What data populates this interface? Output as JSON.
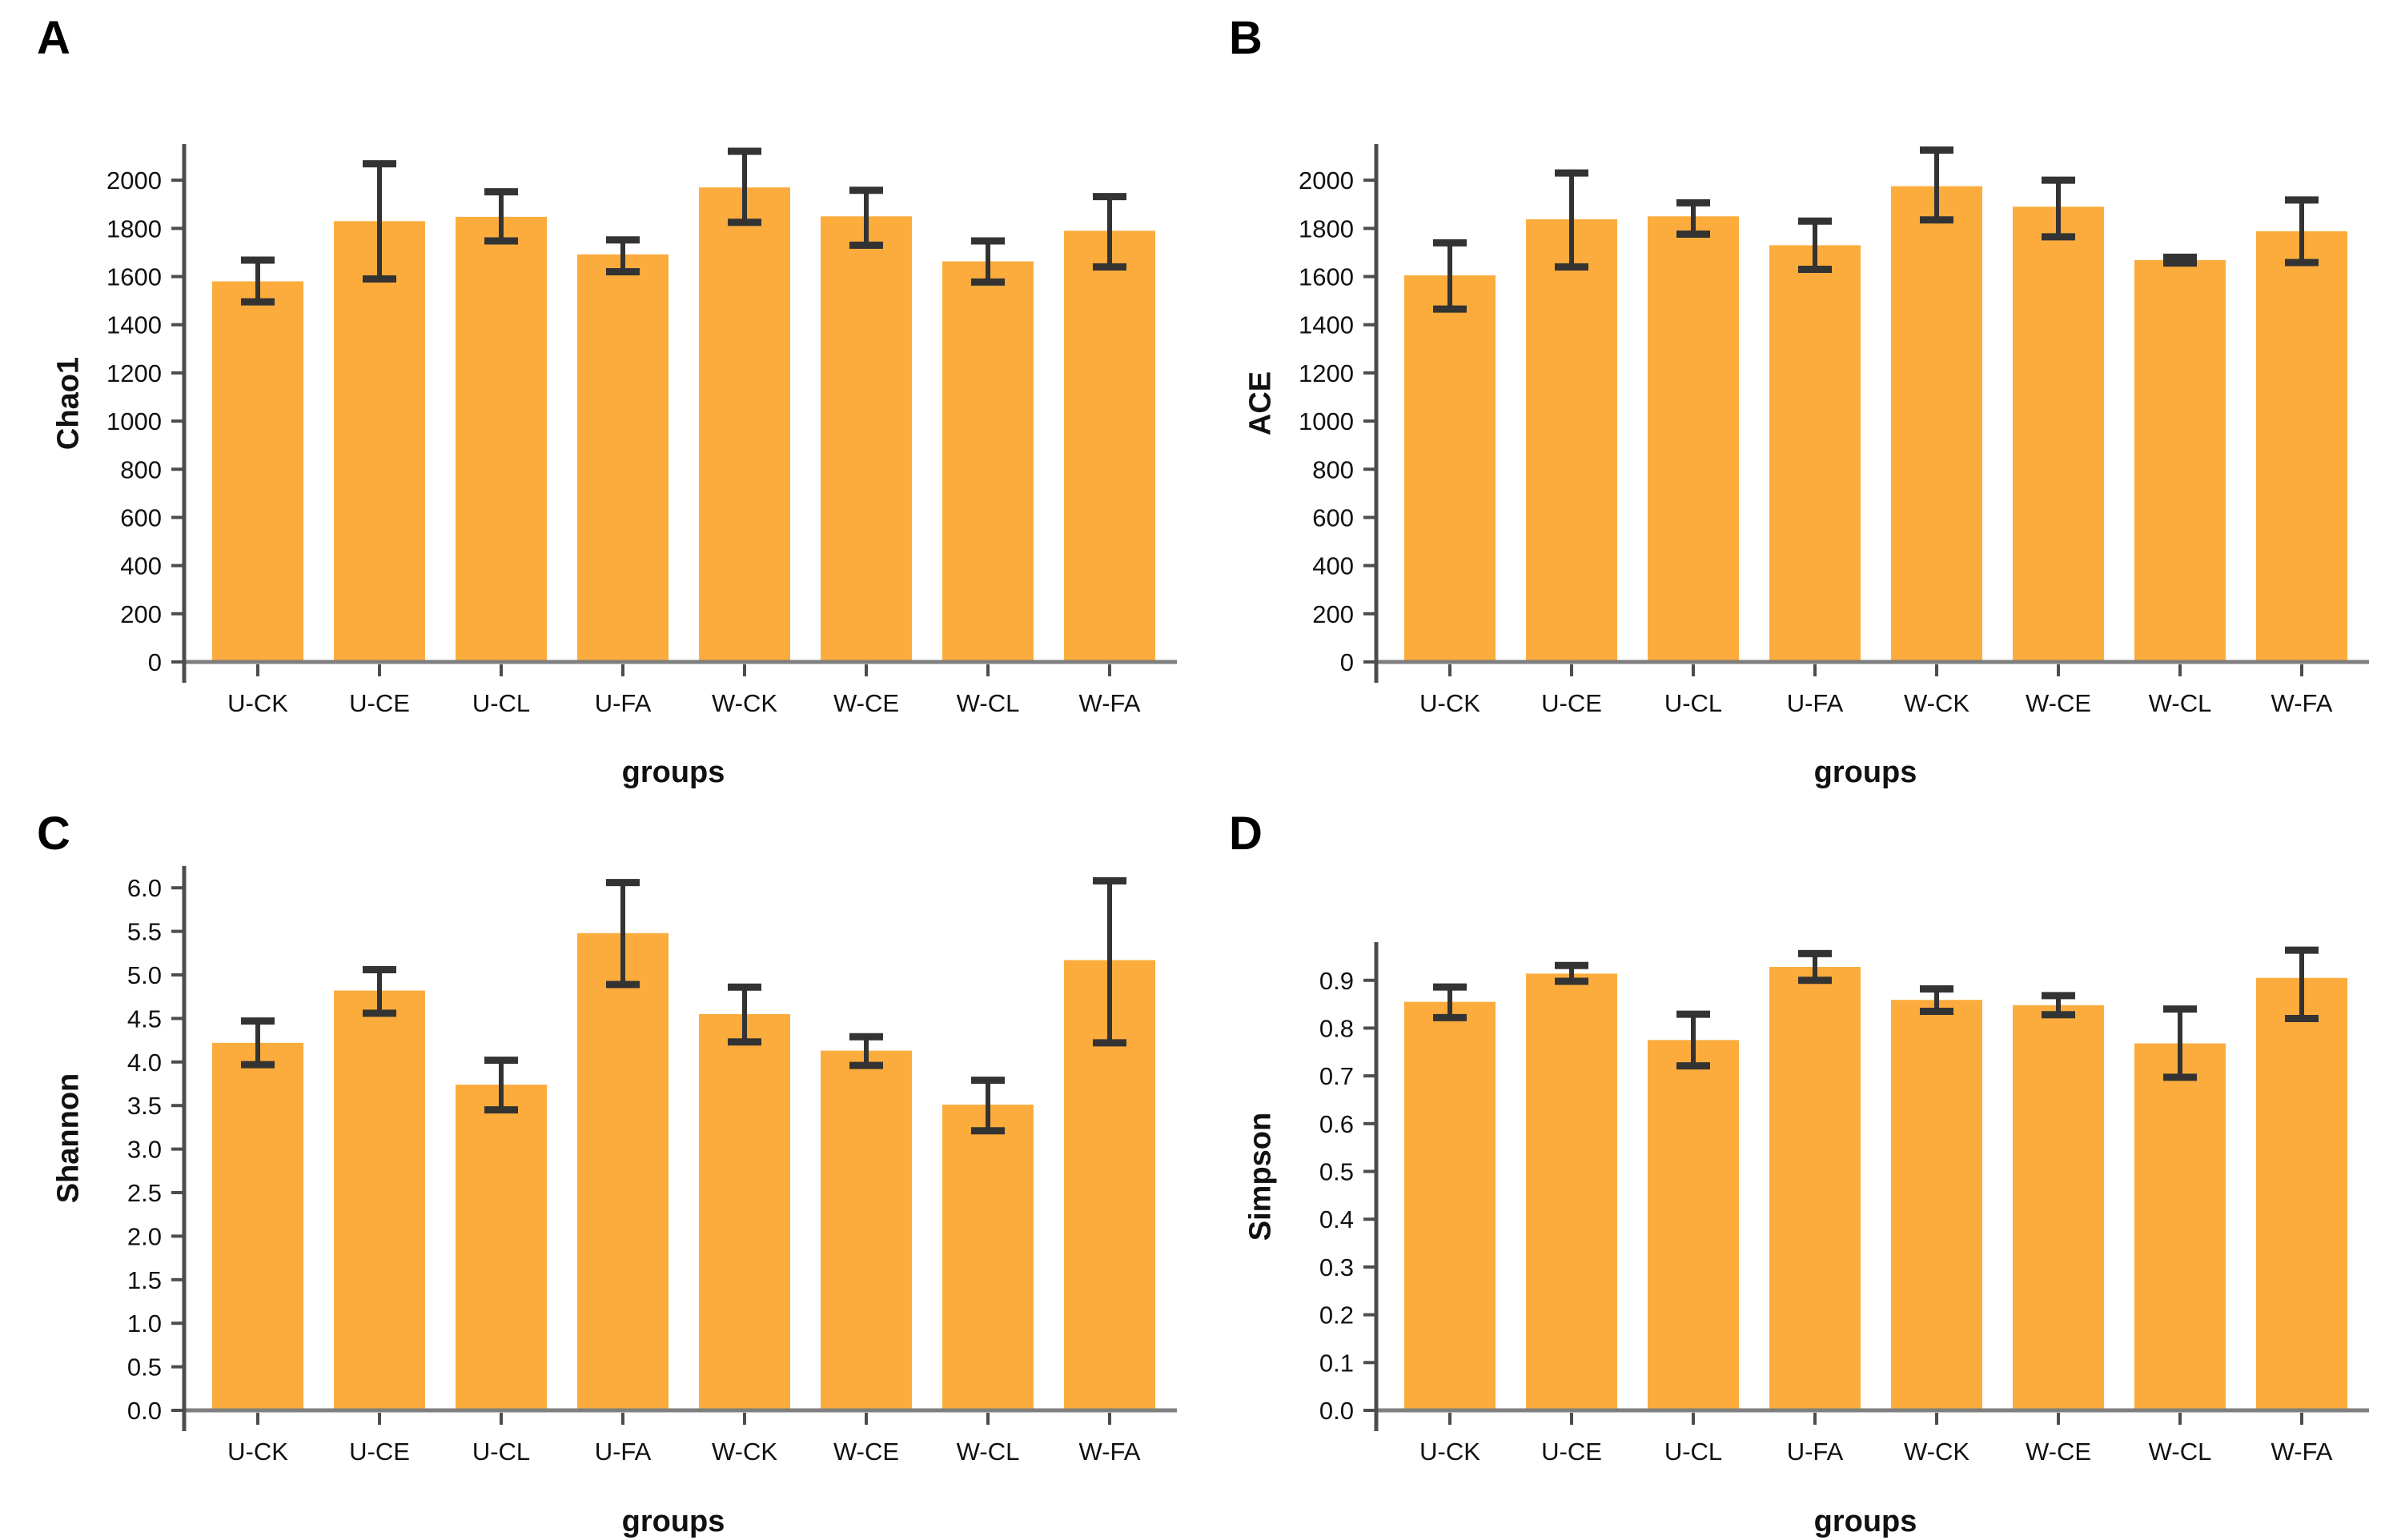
{
  "page": {
    "background": "#ffffff"
  },
  "chart_data": [
    {
      "type": "bar",
      "letter": "A",
      "ylabel": "Chao1",
      "xlabel": "groups",
      "categories": [
        "U-CK",
        "U-CE",
        "U-CL",
        "U-FA",
        "W-CK",
        "W-CE",
        "W-CL",
        "W-FA"
      ],
      "values": [
        1580,
        1830,
        1848,
        1692,
        1970,
        1850,
        1663,
        1790
      ],
      "error_low": [
        1495,
        1590,
        1748,
        1620,
        1825,
        1730,
        1577,
        1640
      ],
      "error_high": [
        1668,
        2068,
        1952,
        1752,
        2120,
        1958,
        1748,
        1932
      ],
      "ylim": [
        0,
        2150
      ],
      "yticks": [
        0,
        200,
        400,
        600,
        800,
        1000,
        1200,
        1400,
        1600,
        1800,
        2000
      ],
      "ytick_labels": [
        "0",
        "200",
        "400",
        "600",
        "800",
        "1000",
        "1200",
        "1400",
        "1600",
        "1800",
        "2000"
      ],
      "grid": "off",
      "legend": "none",
      "bar_color": "#FBAC3D",
      "error_color": "#333333",
      "axis_color": "#4D4D4D",
      "baseline_color": "#7F7F7F"
    },
    {
      "type": "bar",
      "letter": "B",
      "ylabel": "ACE",
      "xlabel": "groups",
      "categories": [
        "U-CK",
        "U-CE",
        "U-CL",
        "U-FA",
        "W-CK",
        "W-CE",
        "W-CL",
        "W-FA"
      ],
      "values": [
        1605,
        1838,
        1850,
        1730,
        1975,
        1890,
        1668,
        1788
      ],
      "error_low": [
        1465,
        1640,
        1776,
        1630,
        1835,
        1765,
        1656,
        1658
      ],
      "error_high": [
        1740,
        2030,
        1906,
        1830,
        2125,
        2000,
        1680,
        1918
      ],
      "ylim": [
        0,
        2150
      ],
      "yticks": [
        0,
        200,
        400,
        600,
        800,
        1000,
        1200,
        1400,
        1600,
        1800,
        2000
      ],
      "ytick_labels": [
        "0",
        "200",
        "400",
        "600",
        "800",
        "1000",
        "1200",
        "1400",
        "1600",
        "1800",
        "2000"
      ],
      "grid": "off",
      "legend": "none",
      "bar_color": "#FBAC3D",
      "error_color": "#333333",
      "axis_color": "#4D4D4D",
      "baseline_color": "#7F7F7F"
    },
    {
      "type": "bar",
      "letter": "C",
      "ylabel": "Shannon",
      "xlabel": "groups",
      "categories": [
        "U-CK",
        "U-CE",
        "U-CL",
        "U-FA",
        "W-CK",
        "W-CE",
        "W-CL",
        "W-FA"
      ],
      "values": [
        4.22,
        4.82,
        3.74,
        5.48,
        4.55,
        4.13,
        3.51,
        5.17
      ],
      "error_low": [
        3.97,
        4.56,
        3.45,
        4.89,
        4.23,
        3.96,
        3.21,
        4.22
      ],
      "error_high": [
        4.47,
        5.06,
        4.02,
        6.06,
        4.86,
        4.29,
        3.79,
        6.08
      ],
      "ylim": [
        0,
        6.25
      ],
      "yticks": [
        0,
        0.5,
        1.0,
        1.5,
        2.0,
        2.5,
        3.0,
        3.5,
        4.0,
        4.5,
        5.0,
        5.5,
        6.0
      ],
      "ytick_labels": [
        "0.0",
        "0.5",
        "1.0",
        "1.5",
        "2.0",
        "2.5",
        "3.0",
        "3.5",
        "4.0",
        "4.5",
        "5.0",
        "5.5",
        "6.0"
      ],
      "grid": "off",
      "legend": "none",
      "bar_color": "#FBAC3D",
      "error_color": "#333333",
      "axis_color": "#4D4D4D",
      "baseline_color": "#7F7F7F"
    },
    {
      "type": "bar",
      "letter": "D",
      "ylabel": "Simpson",
      "xlabel": "groups",
      "categories": [
        "U-CK",
        "U-CE",
        "U-CL",
        "U-FA",
        "W-CK",
        "W-CE",
        "W-CL",
        "W-FA"
      ],
      "values": [
        0.855,
        0.914,
        0.775,
        0.928,
        0.859,
        0.848,
        0.768,
        0.905
      ],
      "error_low": [
        0.822,
        0.898,
        0.721,
        0.9,
        0.835,
        0.828,
        0.697,
        0.82
      ],
      "error_high": [
        0.886,
        0.931,
        0.829,
        0.956,
        0.882,
        0.868,
        0.84,
        0.963
      ],
      "ylim": [
        0,
        0.98
      ],
      "yticks": [
        0,
        0.1,
        0.2,
        0.3,
        0.4,
        0.5,
        0.6,
        0.7,
        0.8,
        0.9
      ],
      "ytick_labels": [
        "0.0",
        "0.1",
        "0.2",
        "0.3",
        "0.4",
        "0.5",
        "0.6",
        "0.7",
        "0.8",
        "0.9"
      ],
      "grid": "off",
      "legend": "none",
      "bar_color": "#FBAC3D",
      "error_color": "#333333",
      "axis_color": "#4D4D4D",
      "baseline_color": "#7F7F7F"
    }
  ]
}
